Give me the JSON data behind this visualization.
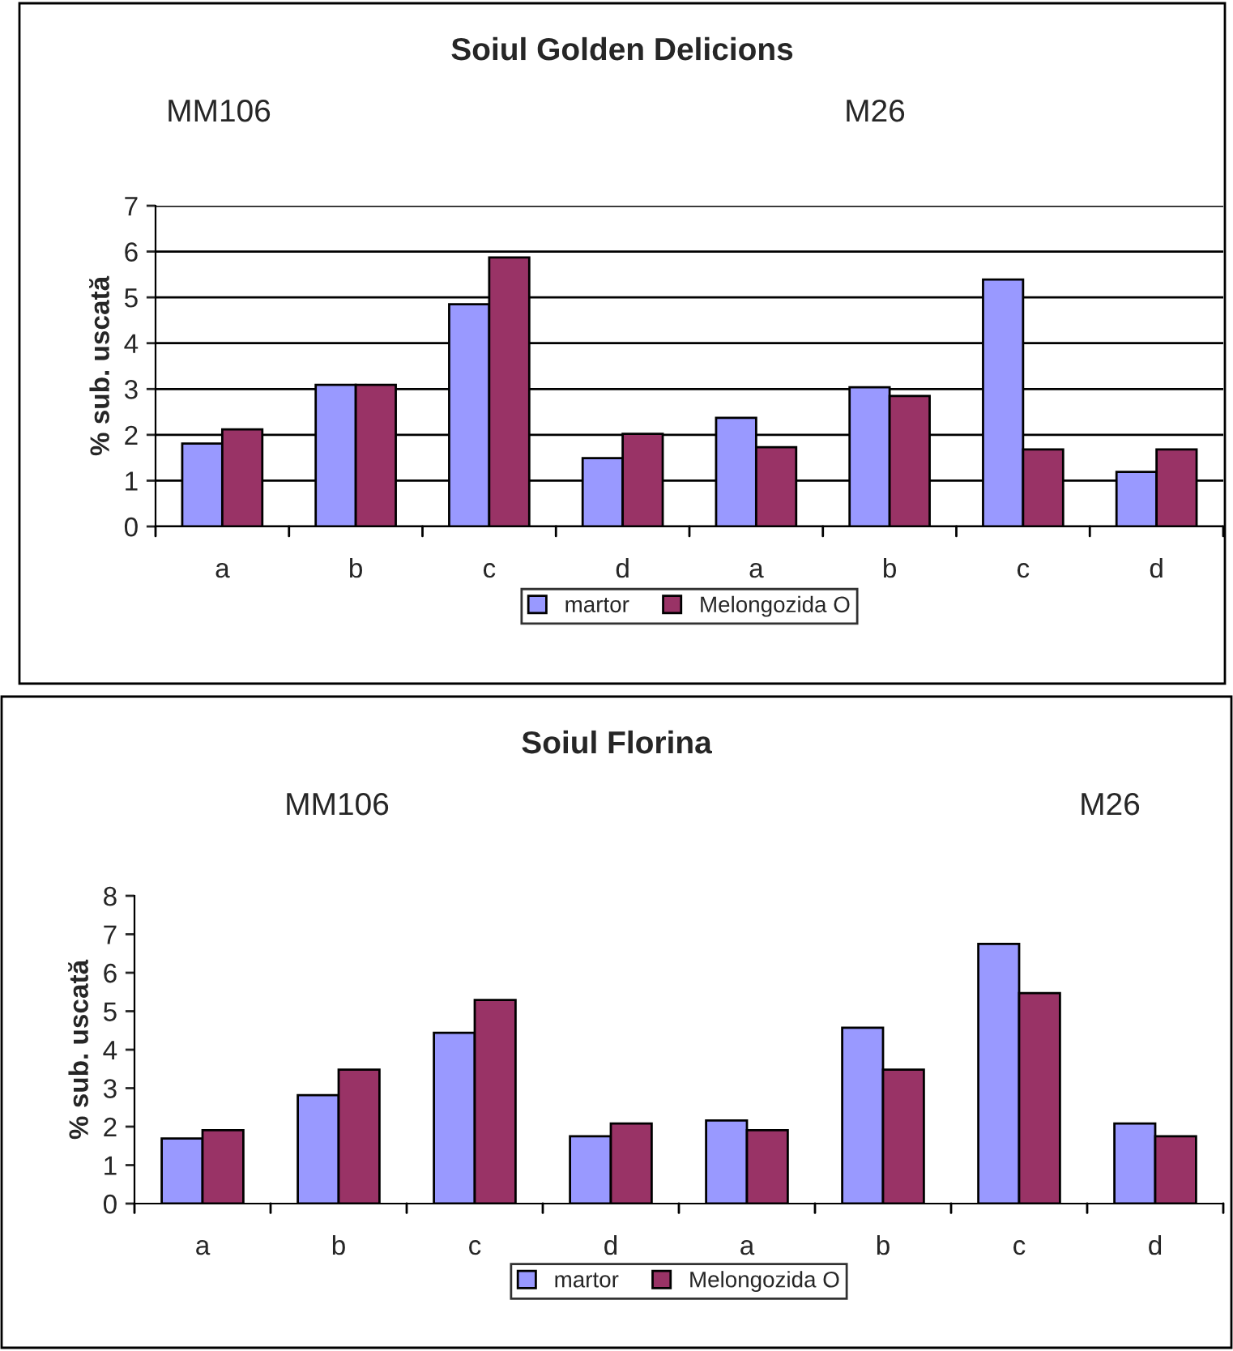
{
  "chart_data": [
    {
      "type": "bar",
      "title": "Soiul Golden Delicions",
      "ylabel": "% sub. uscată",
      "categories": [
        "a",
        "b",
        "c",
        "d",
        "a",
        "b",
        "c",
        "d"
      ],
      "series": [
        {
          "name": "martor",
          "color": "#9999ff",
          "values": [
            1.81,
            3.09,
            4.85,
            1.49,
            2.37,
            3.04,
            5.39,
            1.19
          ]
        },
        {
          "name": "Melongozida O",
          "color": "#993366",
          "values": [
            2.12,
            3.09,
            5.87,
            2.02,
            1.73,
            2.85,
            1.68,
            1.68
          ]
        }
      ],
      "ylim": [
        0,
        7
      ],
      "yticks": [
        0,
        1,
        2,
        3,
        4,
        5,
        6,
        7
      ],
      "grid": "y",
      "legend": "bottom",
      "annotations": [
        "MM106",
        "M26"
      ]
    },
    {
      "type": "bar",
      "title": "Soiul Florina",
      "ylabel": "% sub. uscată",
      "categories": [
        "a",
        "b",
        "c",
        "d",
        "a",
        "b",
        "c",
        "d"
      ],
      "series": [
        {
          "name": "martor",
          "color": "#9999ff",
          "values": [
            1.69,
            2.82,
            4.44,
            1.75,
            2.16,
            4.57,
            6.75,
            2.08
          ]
        },
        {
          "name": "Melongozida O",
          "color": "#993366",
          "values": [
            1.91,
            3.48,
            5.29,
            2.08,
            1.91,
            3.48,
            5.47,
            1.75
          ]
        }
      ],
      "ylim": [
        0,
        8
      ],
      "yticks": [
        0,
        1,
        2,
        3,
        4,
        5,
        6,
        7,
        8
      ],
      "grid": false,
      "legend": "bottom",
      "annotations": [
        "MM106",
        "M26"
      ]
    }
  ]
}
